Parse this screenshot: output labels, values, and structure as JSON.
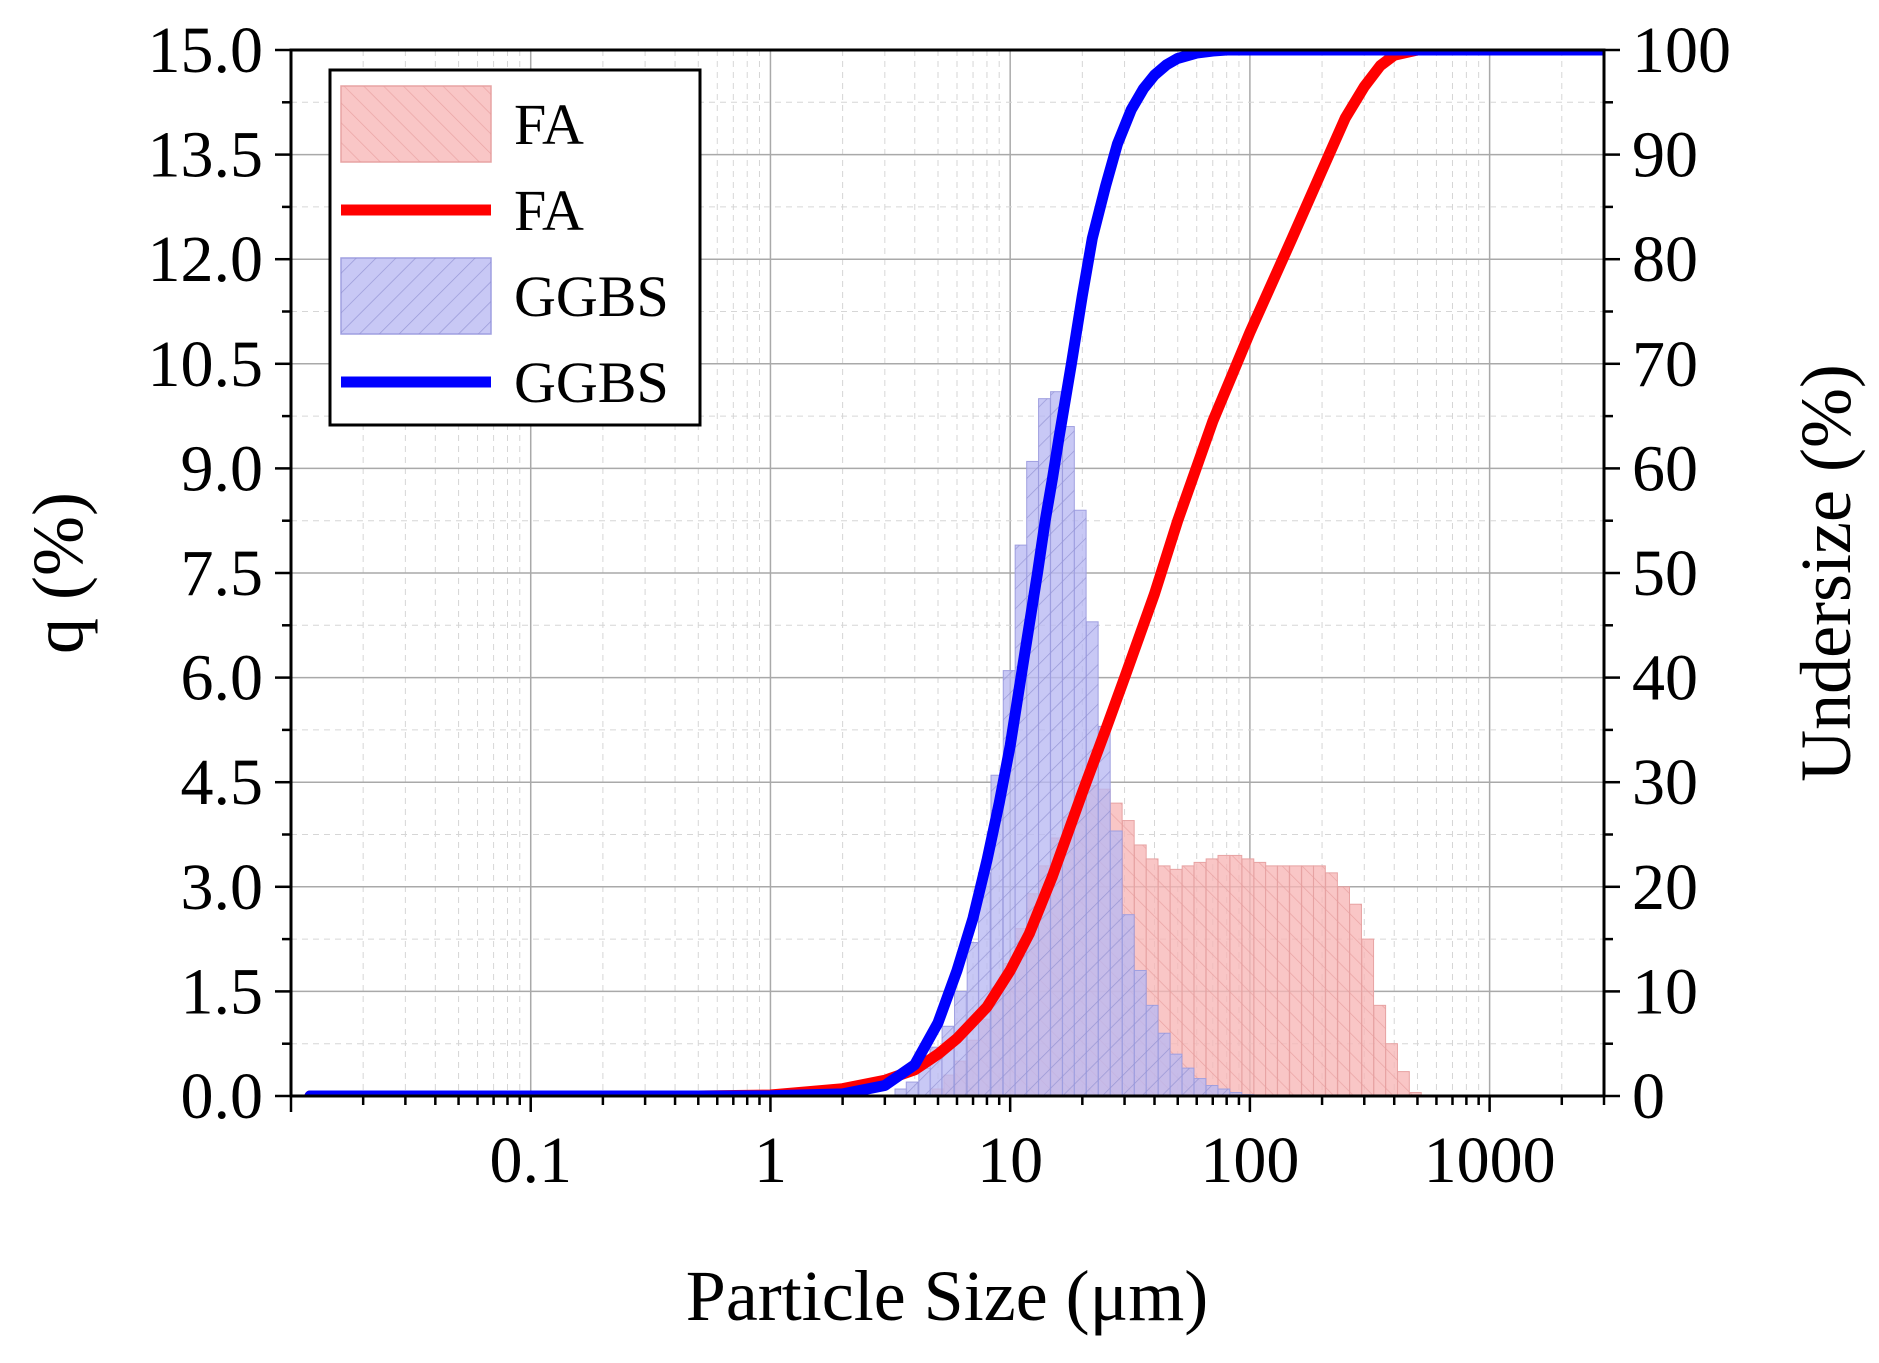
{
  "chart_data": {
    "type": "bar",
    "xlabel": "Particle Size (μm)",
    "ylabel": "q (%)",
    "y2label": "Undersize (%)",
    "xscale": "log",
    "xlim": [
      0.01,
      3000
    ],
    "ylim": [
      0,
      15
    ],
    "y2lim": [
      0,
      100
    ],
    "x_ticks": [
      "0.1",
      "1",
      "10",
      "100",
      "1000"
    ],
    "y_ticks": [
      "0.0",
      "1.5",
      "3.0",
      "4.5",
      "6.0",
      "7.5",
      "9.0",
      "10.5",
      "12.0",
      "13.5",
      "15.0"
    ],
    "y2_ticks": [
      "0",
      "10",
      "20",
      "30",
      "40",
      "50",
      "60",
      "70",
      "80",
      "90",
      "100"
    ],
    "grid": true,
    "legend_position": "top-left",
    "legend": [
      {
        "name": "FA",
        "kind": "bar",
        "color": "#f7b6b6"
      },
      {
        "name": "FA",
        "kind": "line",
        "color": "#ff0000"
      },
      {
        "name": "GGBS",
        "kind": "bar",
        "color": "#b9b9f2"
      },
      {
        "name": "GGBS",
        "kind": "line",
        "color": "#0000ff"
      }
    ],
    "series": [
      {
        "name": "FA",
        "kind": "bar",
        "axis": "left",
        "color": "#f7b6b6",
        "x": [
          5.0,
          5.6,
          6.2,
          7.0,
          7.8,
          8.8,
          9.9,
          11.1,
          12.4,
          13.9,
          15.6,
          17.5,
          19.6,
          22.0,
          24.7,
          27.7,
          31.1,
          34.9,
          39.1,
          43.9,
          49.2,
          55.2,
          61.9,
          69.5,
          77.9,
          87.4,
          98.1,
          110,
          123,
          138,
          155,
          174,
          195,
          219,
          246,
          276,
          310,
          348,
          390,
          437,
          490
        ],
        "values": [
          0.1,
          0.3,
          0.5,
          0.8,
          1.1,
          1.5,
          1.9,
          2.4,
          2.9,
          3.3,
          3.7,
          4.0,
          4.3,
          4.45,
          4.4,
          4.2,
          3.95,
          3.6,
          3.4,
          3.3,
          3.25,
          3.3,
          3.35,
          3.4,
          3.45,
          3.45,
          3.4,
          3.35,
          3.3,
          3.3,
          3.3,
          3.3,
          3.3,
          3.2,
          3.0,
          2.75,
          2.25,
          1.3,
          0.75,
          0.35,
          0.05
        ]
      },
      {
        "name": "GGBS",
        "kind": "bar",
        "axis": "left",
        "color": "#b9b9f2",
        "x": [
          3.5,
          3.9,
          4.4,
          4.9,
          5.5,
          6.2,
          7.0,
          7.8,
          8.8,
          9.9,
          11.1,
          12.4,
          13.9,
          15.6,
          17.5,
          19.6,
          22.0,
          24.7,
          27.7,
          31.1,
          34.9,
          39.1,
          43.9,
          49.2,
          55.2,
          61.9,
          69.5,
          77.9,
          87.4,
          98.1
        ],
        "values": [
          0.1,
          0.2,
          0.4,
          0.7,
          1.0,
          1.5,
          2.2,
          3.2,
          4.6,
          6.1,
          7.9,
          9.1,
          10.0,
          10.1,
          9.6,
          8.4,
          6.8,
          5.3,
          3.8,
          2.6,
          1.8,
          1.3,
          0.9,
          0.6,
          0.4,
          0.25,
          0.15,
          0.1,
          0.05,
          0.02
        ]
      },
      {
        "name": "FA",
        "kind": "line",
        "axis": "right",
        "color": "#ff0000",
        "x": [
          0.012,
          0.1,
          0.5,
          1,
          2,
          3,
          4,
          5,
          6,
          8,
          10,
          12,
          15,
          20,
          25,
          30,
          40,
          50,
          70,
          100,
          150,
          200,
          250,
          300,
          350,
          400,
          500,
          1000,
          3000
        ],
        "values": [
          0,
          0,
          0,
          0.1,
          0.7,
          1.5,
          2.5,
          4.0,
          5.5,
          8.5,
          12.0,
          15.5,
          21.0,
          29.0,
          35.0,
          40.0,
          48.0,
          55.0,
          64.5,
          73.0,
          82.0,
          88.5,
          93.5,
          96.5,
          98.5,
          99.5,
          100,
          100,
          100
        ]
      },
      {
        "name": "GGBS",
        "kind": "line",
        "axis": "right",
        "color": "#0000ff",
        "x": [
          0.012,
          0.1,
          0.5,
          1,
          2,
          3,
          4,
          5,
          6,
          7,
          8,
          9,
          10,
          11,
          12,
          13,
          14,
          15,
          16,
          18,
          20,
          22,
          25,
          28,
          32,
          36,
          40,
          45,
          50,
          60,
          70,
          80,
          100,
          200,
          3000
        ],
        "values": [
          0,
          0,
          0,
          0.02,
          0.2,
          1.0,
          3.0,
          7.0,
          12.0,
          17.0,
          22.5,
          28.0,
          33.5,
          39.5,
          45.0,
          50.0,
          55.0,
          59.0,
          63.0,
          70.0,
          76.5,
          82.0,
          87.0,
          91.0,
          94.3,
          96.3,
          97.6,
          98.6,
          99.2,
          99.7,
          99.9,
          100,
          100,
          100,
          100
        ]
      }
    ]
  }
}
